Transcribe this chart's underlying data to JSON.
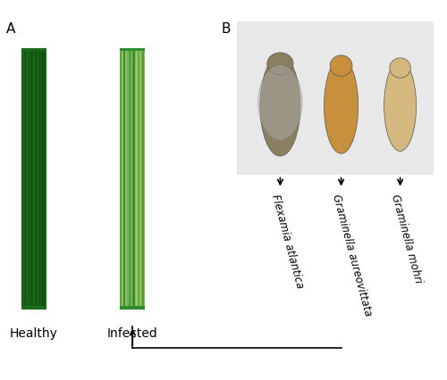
{
  "fig_width": 5.0,
  "fig_height": 4.27,
  "bg_color": "#ffffff",
  "panel_A_label": "A",
  "panel_B_label": "B",
  "healthy_label": "Healthy",
  "infected_label": "Infected",
  "species": [
    "Flexamia atlantica",
    "Graminella aureovittata",
    "Graminella mohri"
  ],
  "label_fontsize": 10,
  "species_fontsize": 8.5,
  "panel_label_fontsize": 11,
  "leaf_healthy_color1": "#1a6b1a",
  "leaf_healthy_color2": "#2d8c2d",
  "leaf_healthy_stripe": "#0d4d0d",
  "leaf_infected_color1": "#2d8c2d",
  "leaf_infected_color2": "#8cb87a",
  "leaf_infected_stripe": "#c8d870",
  "insect_bg": "#d4c9a8",
  "insect1_color": "#8a7a60",
  "insect2_color": "#c8a060",
  "insect3_color": "#d4b880"
}
